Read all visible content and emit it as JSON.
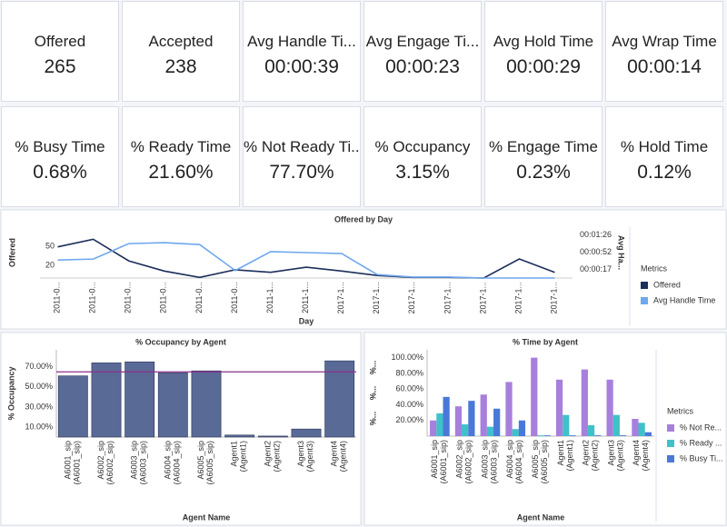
{
  "kpis": [
    {
      "label": "Offered",
      "value": "265"
    },
    {
      "label": "Accepted",
      "value": "238"
    },
    {
      "label": "Avg Handle Ti...",
      "value": "00:00:39"
    },
    {
      "label": "Avg Engage Ti...",
      "value": "00:00:23"
    },
    {
      "label": "Avg Hold Time",
      "value": "00:00:29"
    },
    {
      "label": "Avg Wrap Time",
      "value": "00:00:14"
    },
    {
      "label": "% Busy Time",
      "value": "0.68%"
    },
    {
      "label": "% Ready Time",
      "value": "21.60%"
    },
    {
      "label": "% Not Ready Ti...",
      "value": "77.70%"
    },
    {
      "label": "% Occupancy",
      "value": "3.15%"
    },
    {
      "label": "% Engage Time",
      "value": "0.23%"
    },
    {
      "label": "% Hold Time",
      "value": "0.12%"
    }
  ],
  "chart_data": [
    {
      "type": "line",
      "title": "Offered by Day",
      "x_label": "Day",
      "y_label": "Offered",
      "y2_label": "Avg Ha...",
      "legend_title": "Metrics",
      "legend": "right",
      "categories": [
        "2011-0...",
        "2011-0...",
        "2011-0...",
        "2011-0...",
        "2011-0...",
        "2011-0...",
        "2011-1...",
        "2011-1...",
        "2017-1...",
        "2017-1...",
        "2017-1...",
        "2017-1...",
        "2017-1...",
        "2017-1...",
        "2017-1..."
      ],
      "ylim": [
        0,
        80
      ],
      "yticks": [
        20,
        50
      ],
      "y2lim": [
        0,
        102
      ],
      "y2ticks": [
        {
          "value": 17,
          "label": "00:00:17"
        },
        {
          "value": 52,
          "label": "00:00:52"
        },
        {
          "value": 86,
          "label": "00:01:26"
        }
      ],
      "series": [
        {
          "name": "Offered",
          "color": "#1c2e5a",
          "values": [
            49,
            61,
            27,
            11,
            1,
            13,
            9,
            17,
            11,
            4,
            1,
            1,
            0,
            30,
            9
          ]
        },
        {
          "name": "Avg Handle Time",
          "color": "#6fa8ef",
          "axis": "y2",
          "values": [
            36,
            38,
            69,
            71,
            67,
            15,
            53,
            51,
            49,
            7,
            2,
            2,
            0,
            0,
            0
          ]
        }
      ]
    },
    {
      "type": "bar",
      "title": "% Occupancy by Agent",
      "x_label": "Agent Name",
      "y_label": "% Occupancy",
      "categories": [
        "A6001_sip\n(A6001_sip)",
        "A6002_sip\n(A6002_sip)",
        "A6003_sip\n(A6003_sip)",
        "A6004_sip\n(A6004_sip)",
        "A6005_sip\n(A6005_sip)",
        "Agent1\n(Agent1)",
        "Agent2\n(Agent2)",
        "Agent3\n(Agent3)",
        "Agent4\n(Agent4)"
      ],
      "values": [
        61,
        74,
        75,
        64,
        66,
        2,
        1,
        8,
        76
      ],
      "color": "#5a6a96",
      "reference_line": 65,
      "reference_color": "#8b2f8b",
      "ylim": [
        0,
        87
      ],
      "yticks": [
        {
          "value": 10,
          "label": "10.00%"
        },
        {
          "value": 30,
          "label": "30.00%"
        },
        {
          "value": 50,
          "label": "50.00%"
        },
        {
          "value": 70,
          "label": "70.00%"
        }
      ]
    },
    {
      "type": "bar",
      "title": "% Time by Agent",
      "x_label": "Agent Name",
      "y_label": "%...",
      "legend_title": "Metrics",
      "legend": "right",
      "categories": [
        "A6001_sip\n(A6001_sip)",
        "A6002_sip\n(A6002_sip)",
        "A6003_sip\n(A6003_sip)",
        "A6004_sip\n(A6004_sip)",
        "A6005_sip\n(A6005_sip)",
        "Agent1\n(Agent1)",
        "Agent2\n(Agent2)",
        "Agent3\n(Agent3)",
        "Agent4\n(Agent4)"
      ],
      "ylim": [
        0,
        110
      ],
      "yticks": [
        {
          "value": 20,
          "label": "20.00%"
        },
        {
          "value": 40,
          "label": "40.00%"
        },
        {
          "value": 60,
          "label": "60.00%"
        },
        {
          "value": 80,
          "label": "80.00%"
        },
        {
          "value": 100,
          "label": "100.00%"
        }
      ],
      "series": [
        {
          "name": "% Not Re...",
          "color": "#a77fdc",
          "values": [
            20,
            38,
            53,
            69,
            100,
            72,
            85,
            72,
            22
          ]
        },
        {
          "name": "% Ready ...",
          "color": "#3fc1c9",
          "values": [
            29,
            15,
            12,
            9,
            1,
            27,
            14,
            27,
            17
          ]
        },
        {
          "name": "% Busy Ti...",
          "color": "#4a78d9",
          "values": [
            50,
            45,
            35,
            20,
            1,
            1,
            1,
            1,
            5
          ]
        }
      ]
    }
  ]
}
